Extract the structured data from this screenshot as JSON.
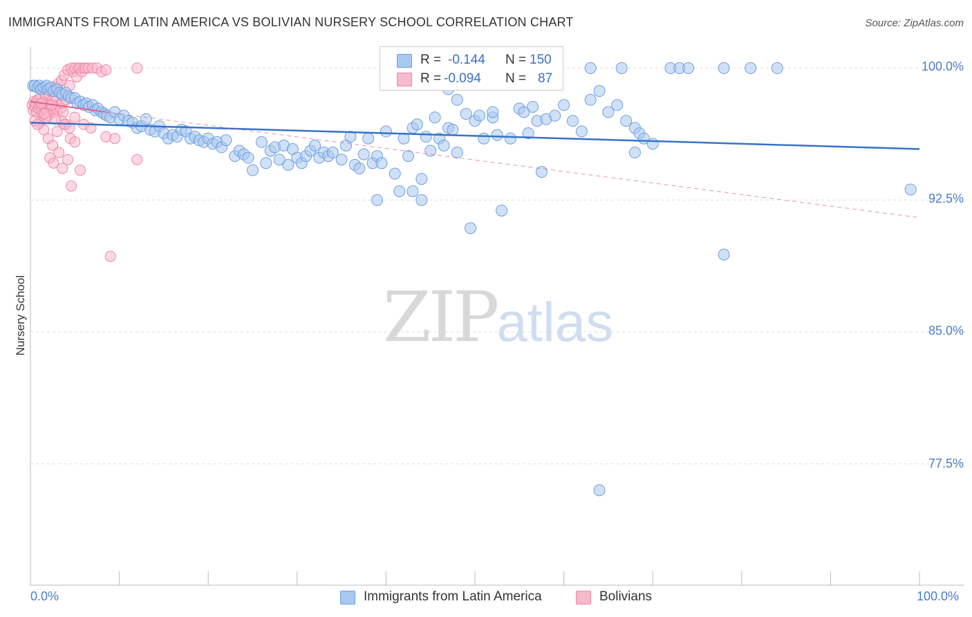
{
  "title": "IMMIGRANTS FROM LATIN AMERICA VS BOLIVIAN NURSERY SCHOOL CORRELATION CHART",
  "source": "Source: ZipAtlas.com",
  "watermark": {
    "zip": "ZIP",
    "atlas": "atlas"
  },
  "colors": {
    "blue_fill": "#a9c8f0",
    "blue_stroke": "#6f9fe0",
    "blue_line": "#3672c8",
    "pink_fill": "#f7b9cc",
    "pink_stroke": "#ee87a6",
    "pink_line": "#e0608a",
    "grid": "#dddddd",
    "axis_text": "#4a7cc9"
  },
  "legend": {
    "r_label": "R =",
    "n_label": "N =",
    "series": [
      {
        "r": "-0.144",
        "n": "150"
      },
      {
        "r": "-0.094",
        "n": "87"
      }
    ]
  },
  "chart_data": {
    "type": "scatter",
    "title": "IMMIGRANTS FROM LATIN AMERICA VS BOLIVIAN NURSERY SCHOOL CORRELATION CHART",
    "xlabel": "",
    "ylabel": "Nursery School",
    "xlim": [
      0,
      100
    ],
    "ylim": [
      70.6,
      101.2
    ],
    "x_tick_labels": [
      "0.0%",
      "100.0%"
    ],
    "y_ticks": [
      100.0,
      92.5,
      85.0,
      77.5
    ],
    "y_tick_labels": [
      "100.0%",
      "92.5%",
      "85.0%",
      "77.5%"
    ],
    "grid": true,
    "legend_position": "top-center",
    "series": [
      {
        "name": "Immigrants from Latin America",
        "color": "#a9c8f0",
        "r": -0.144,
        "n": 150,
        "trend": {
          "x": [
            0,
            100
          ],
          "y": [
            96.9,
            95.4
          ],
          "style": "solid"
        },
        "points": [
          [
            0.3,
            99.0
          ],
          [
            0.5,
            99.0
          ],
          [
            0.8,
            98.9
          ],
          [
            1.0,
            99.0
          ],
          [
            1.2,
            98.8
          ],
          [
            1.5,
            98.9
          ],
          [
            1.8,
            99.0
          ],
          [
            2.0,
            98.8
          ],
          [
            2.3,
            98.9
          ],
          [
            2.6,
            98.7
          ],
          [
            3.0,
            98.8
          ],
          [
            3.3,
            98.6
          ],
          [
            3.6,
            98.5
          ],
          [
            4.0,
            98.6
          ],
          [
            4.3,
            98.4
          ],
          [
            4.6,
            98.3
          ],
          [
            5.0,
            98.3
          ],
          [
            5.3,
            98.0
          ],
          [
            5.6,
            98.1
          ],
          [
            6.0,
            97.9
          ],
          [
            6.3,
            98.0
          ],
          [
            6.6,
            97.8
          ],
          [
            7.0,
            97.9
          ],
          [
            7.3,
            97.6
          ],
          [
            7.6,
            97.7
          ],
          [
            8.0,
            97.5
          ],
          [
            8.3,
            97.4
          ],
          [
            8.6,
            97.3
          ],
          [
            9.0,
            97.2
          ],
          [
            9.5,
            97.5
          ],
          [
            10.0,
            97.1
          ],
          [
            10.5,
            97.3
          ],
          [
            11.0,
            97.0
          ],
          [
            11.5,
            96.9
          ],
          [
            12.0,
            96.6
          ],
          [
            12.5,
            96.7
          ],
          [
            13.0,
            97.1
          ],
          [
            13.5,
            96.5
          ],
          [
            14.0,
            96.4
          ],
          [
            14.5,
            96.7
          ],
          [
            15.0,
            96.3
          ],
          [
            15.5,
            96.0
          ],
          [
            16.0,
            96.2
          ],
          [
            16.5,
            96.1
          ],
          [
            17.0,
            96.5
          ],
          [
            17.5,
            96.4
          ],
          [
            18.0,
            96.0
          ],
          [
            18.5,
            96.1
          ],
          [
            19.0,
            95.9
          ],
          [
            19.5,
            95.8
          ],
          [
            20.0,
            96.0
          ],
          [
            20.5,
            95.7
          ],
          [
            21.0,
            95.8
          ],
          [
            21.5,
            95.5
          ],
          [
            22.0,
            95.9
          ],
          [
            23.0,
            95.0
          ],
          [
            23.5,
            95.3
          ],
          [
            24.0,
            95.1
          ],
          [
            24.5,
            94.9
          ],
          [
            25.0,
            94.2
          ],
          [
            26.0,
            95.8
          ],
          [
            26.5,
            94.6
          ],
          [
            27.0,
            95.3
          ],
          [
            27.5,
            95.5
          ],
          [
            28.0,
            94.8
          ],
          [
            28.5,
            95.6
          ],
          [
            29.0,
            94.5
          ],
          [
            29.5,
            95.4
          ],
          [
            30.0,
            94.9
          ],
          [
            30.5,
            94.6
          ],
          [
            31.0,
            95.0
          ],
          [
            31.5,
            95.3
          ],
          [
            32.0,
            95.6
          ],
          [
            32.5,
            94.9
          ],
          [
            33.0,
            95.2
          ],
          [
            33.5,
            95.0
          ],
          [
            34.0,
            95.2
          ],
          [
            35.0,
            94.8
          ],
          [
            35.5,
            95.6
          ],
          [
            36.0,
            96.1
          ],
          [
            36.5,
            94.5
          ],
          [
            37.0,
            94.3
          ],
          [
            37.5,
            95.1
          ],
          [
            38.0,
            96.0
          ],
          [
            38.5,
            94.6
          ],
          [
            39.0,
            95.0
          ],
          [
            39.5,
            94.6
          ],
          [
            40.0,
            96.4
          ],
          [
            41.0,
            94.0
          ],
          [
            41.5,
            93.0
          ],
          [
            42.0,
            96.0
          ],
          [
            42.5,
            95.0
          ],
          [
            43.0,
            96.6
          ],
          [
            43.5,
            96.8
          ],
          [
            44.0,
            93.7
          ],
          [
            44.5,
            96.1
          ],
          [
            45.0,
            95.3
          ],
          [
            45.5,
            97.2
          ],
          [
            46.0,
            96.0
          ],
          [
            46.5,
            95.6
          ],
          [
            47.0,
            96.6
          ],
          [
            47.5,
            96.5
          ],
          [
            48.0,
            95.2
          ],
          [
            49.0,
            97.4
          ],
          [
            50.0,
            97.0
          ],
          [
            50.5,
            97.3
          ],
          [
            51.0,
            96.0
          ],
          [
            52.0,
            97.2
          ],
          [
            52.5,
            96.2
          ],
          [
            53.0,
            91.9
          ],
          [
            54.0,
            96.0
          ],
          [
            55.0,
            97.7
          ],
          [
            55.5,
            97.5
          ],
          [
            56.0,
            96.3
          ],
          [
            57.0,
            97.0
          ],
          [
            58.0,
            97.1
          ],
          [
            59.0,
            97.3
          ],
          [
            60.0,
            97.9
          ],
          [
            61.0,
            97.0
          ],
          [
            62.0,
            96.4
          ],
          [
            63.0,
            98.2
          ],
          [
            64.0,
            98.7
          ],
          [
            65.0,
            97.5
          ],
          [
            66.0,
            97.9
          ],
          [
            67.0,
            97.0
          ],
          [
            68.0,
            96.6
          ],
          [
            68.5,
            96.3
          ],
          [
            69.0,
            96.0
          ],
          [
            70.0,
            95.7
          ],
          [
            72.0,
            100.0
          ],
          [
            73.0,
            100.0
          ],
          [
            74.0,
            100.0
          ],
          [
            78.0,
            100.0
          ],
          [
            81.0,
            100.0
          ],
          [
            43.0,
            93.0
          ],
          [
            44.0,
            92.5
          ],
          [
            48.0,
            98.2
          ],
          [
            47.0,
            98.8
          ],
          [
            39.0,
            92.5
          ],
          [
            49.5,
            90.9
          ],
          [
            57.5,
            94.1
          ],
          [
            78.0,
            89.4
          ],
          [
            68.0,
            95.2
          ],
          [
            63.0,
            100.0
          ],
          [
            66.5,
            100.0
          ],
          [
            84.0,
            100.0
          ],
          [
            99.0,
            93.1
          ],
          [
            64.0,
            76.0
          ],
          [
            52.0,
            97.5
          ],
          [
            56.5,
            97.8
          ]
        ]
      },
      {
        "name": "Bolivians",
        "color": "#f7b9cc",
        "r": -0.094,
        "n": 87,
        "trend": {
          "x": [
            0,
            8.5,
            100
          ],
          "y": [
            98.1,
            97.5,
            91.5
          ],
          "style": "solid-then-dashed"
        },
        "points": [
          [
            0.2,
            97.9
          ],
          [
            0.3,
            97.6
          ],
          [
            0.4,
            98.1
          ],
          [
            0.5,
            97.8
          ],
          [
            0.6,
            98.0
          ],
          [
            0.7,
            97.5
          ],
          [
            0.8,
            98.2
          ],
          [
            0.9,
            97.7
          ],
          [
            1.0,
            97.9
          ],
          [
            1.1,
            98.3
          ],
          [
            1.2,
            97.6
          ],
          [
            1.3,
            98.0
          ],
          [
            1.4,
            97.4
          ],
          [
            1.5,
            98.1
          ],
          [
            1.6,
            97.8
          ],
          [
            1.7,
            98.4
          ],
          [
            1.8,
            97.6
          ],
          [
            1.9,
            98.0
          ],
          [
            2.0,
            97.3
          ],
          [
            2.1,
            98.5
          ],
          [
            2.2,
            97.9
          ],
          [
            2.3,
            98.7
          ],
          [
            2.4,
            97.7
          ],
          [
            2.5,
            98.2
          ],
          [
            2.6,
            97.5
          ],
          [
            2.7,
            98.9
          ],
          [
            2.8,
            97.8
          ],
          [
            2.9,
            98.3
          ],
          [
            3.0,
            97.6
          ],
          [
            3.1,
            99.1
          ],
          [
            3.2,
            97.9
          ],
          [
            3.3,
            98.6
          ],
          [
            3.4,
            97.7
          ],
          [
            3.5,
            99.3
          ],
          [
            3.6,
            98.0
          ],
          [
            3.7,
            97.5
          ],
          [
            3.8,
            99.6
          ],
          [
            4.0,
            98.2
          ],
          [
            4.2,
            99.9
          ],
          [
            4.4,
            99.0
          ],
          [
            4.6,
            100.0
          ],
          [
            4.8,
            99.8
          ],
          [
            5.0,
            100.0
          ],
          [
            5.2,
            99.5
          ],
          [
            5.4,
            100.0
          ],
          [
            5.6,
            100.0
          ],
          [
            5.8,
            99.8
          ],
          [
            6.0,
            100.0
          ],
          [
            6.2,
            100.0
          ],
          [
            6.5,
            100.0
          ],
          [
            7.0,
            100.0
          ],
          [
            7.5,
            100.0
          ],
          [
            8.0,
            99.8
          ],
          [
            8.5,
            99.9
          ],
          [
            12.0,
            100.0
          ],
          [
            1.0,
            96.9
          ],
          [
            1.5,
            96.5
          ],
          [
            2.0,
            96.0
          ],
          [
            2.5,
            95.6
          ],
          [
            3.0,
            96.4
          ],
          [
            3.5,
            97.0
          ],
          [
            4.0,
            96.8
          ],
          [
            4.5,
            96.0
          ],
          [
            5.0,
            97.2
          ],
          [
            2.2,
            94.9
          ],
          [
            2.6,
            94.6
          ],
          [
            3.2,
            95.2
          ],
          [
            3.6,
            94.3
          ],
          [
            4.2,
            94.8
          ],
          [
            4.6,
            93.3
          ],
          [
            5.6,
            94.2
          ],
          [
            6.0,
            96.8
          ],
          [
            6.8,
            96.6
          ],
          [
            8.5,
            96.1
          ],
          [
            9.5,
            96.0
          ],
          [
            12.0,
            94.8
          ],
          [
            9.0,
            89.3
          ],
          [
            1.2,
            98.0
          ],
          [
            1.8,
            97.2
          ],
          [
            2.4,
            97.9
          ],
          [
            3.8,
            96.8
          ],
          [
            4.4,
            96.6
          ],
          [
            5.0,
            95.8
          ],
          [
            0.5,
            97.0
          ],
          [
            0.8,
            96.8
          ],
          [
            1.6,
            97.4
          ],
          [
            2.8,
            97.1
          ]
        ]
      }
    ]
  }
}
